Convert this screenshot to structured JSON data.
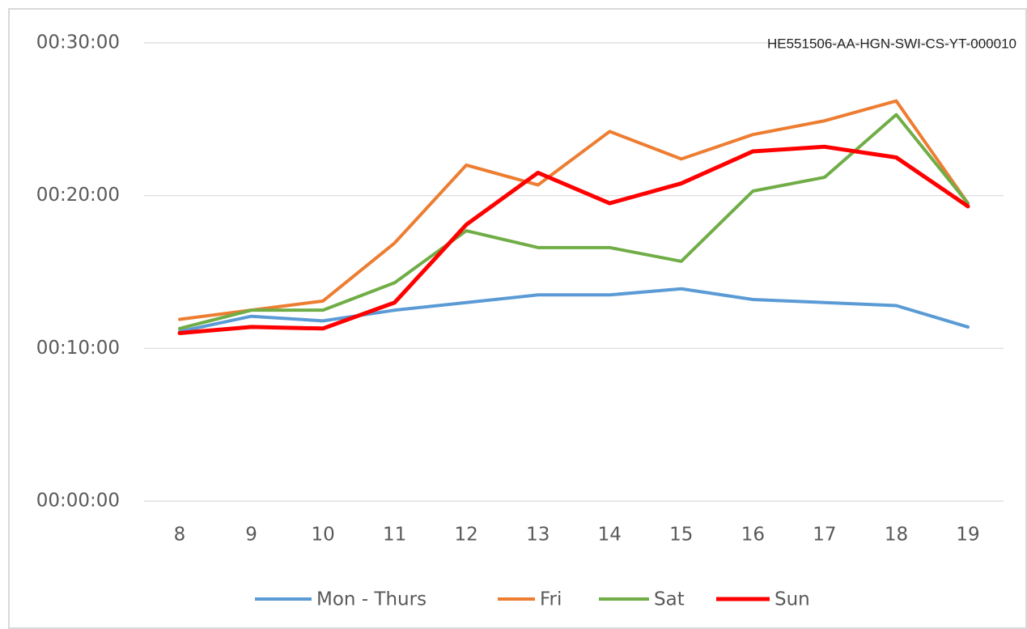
{
  "chart_data": {
    "type": "line",
    "annotation": "HE551506-AA-HGN-SWI-CS-YT-000010",
    "categories": [
      "8",
      "9",
      "10",
      "11",
      "12",
      "13",
      "14",
      "15",
      "16",
      "17",
      "18",
      "19"
    ],
    "series": [
      {
        "name": "Mon - Thurs",
        "color": "#5b9bd5",
        "values": [
          11.1,
          12.1,
          11.8,
          12.5,
          13.0,
          13.5,
          13.5,
          13.9,
          13.2,
          13.0,
          12.8,
          11.4
        ]
      },
      {
        "name": "Fri",
        "color": "#ed7d31",
        "values": [
          11.9,
          12.5,
          13.1,
          16.9,
          22.0,
          20.7,
          24.2,
          22.4,
          24.0,
          24.9,
          26.2,
          19.5
        ]
      },
      {
        "name": "Sat",
        "color": "#70ad47",
        "values": [
          11.3,
          12.5,
          12.5,
          14.3,
          17.7,
          16.6,
          16.6,
          15.7,
          20.3,
          21.2,
          25.3,
          19.5
        ]
      },
      {
        "name": "Sun",
        "color": "#ff0000",
        "values": [
          11.0,
          11.4,
          11.3,
          13.0,
          18.1,
          21.5,
          19.5,
          20.8,
          22.9,
          23.2,
          22.5,
          19.3
        ]
      }
    ],
    "ylim": [
      0,
      30
    ],
    "yticks": [
      {
        "value": 0,
        "label": "00:00:00"
      },
      {
        "value": 10,
        "label": "00:10:00"
      },
      {
        "value": 20,
        "label": "00:20:00"
      },
      {
        "value": 30,
        "label": "00:30:00"
      }
    ],
    "grid": true,
    "legend": "bottom"
  }
}
